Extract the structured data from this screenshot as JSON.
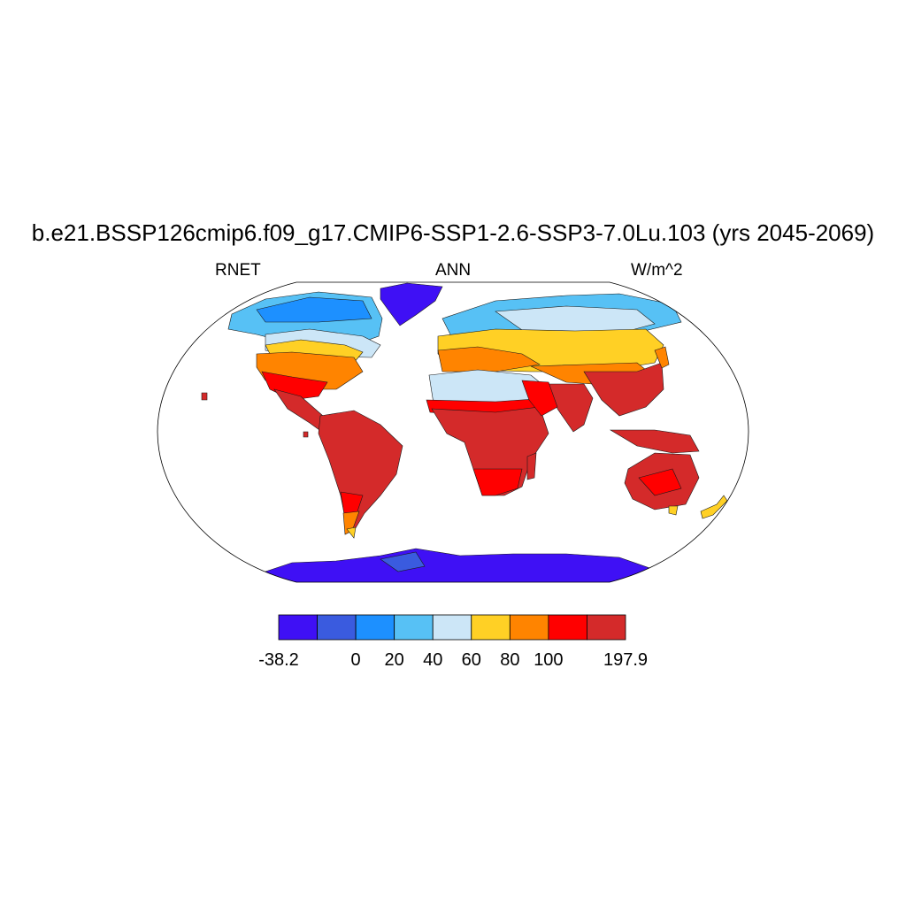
{
  "title": "b.e21.BSSP126cmip6.f09_g17.CMIP6-SSP1-2.6-SSP3-7.0Lu.103 (yrs 2045-2069)",
  "subtitles": {
    "left": "RNET",
    "center": "ANN",
    "right": "W/m^2"
  },
  "map": {
    "projection": "robinson",
    "variable": "RNET",
    "season": "ANN",
    "units": "W/m^2",
    "regions": [
      {
        "region": "Antarctica",
        "class": 0
      },
      {
        "region": "Greenland",
        "class": 0
      },
      {
        "region": "Canadian Arctic",
        "class": 2
      },
      {
        "region": "Siberia",
        "class": 3
      },
      {
        "region": "Northern Europe",
        "class": 4
      },
      {
        "region": "Central Asia",
        "class": 5
      },
      {
        "region": "Southern Europe",
        "class": 6
      },
      {
        "region": "United States",
        "class": 6
      },
      {
        "region": "Sahara",
        "class": 4
      },
      {
        "region": "Tropical Africa",
        "class": 8
      },
      {
        "region": "Amazon",
        "class": 8
      },
      {
        "region": "Southeast Asia",
        "class": 8
      },
      {
        "region": "Australia",
        "class": 8
      },
      {
        "region": "Patagonia",
        "class": 6
      }
    ]
  },
  "colorbar": {
    "colors": [
      "#3f10f5",
      "#3a5bdf",
      "#1d90ff",
      "#57c1f5",
      "#cce6f7",
      "#ffd025",
      "#ff8400",
      "#ff0000",
      "#d42a2a"
    ],
    "tick_labels": [
      {
        "label": "-38.2",
        "boundary": 0
      },
      {
        "label": "0",
        "boundary": 2
      },
      {
        "label": "20",
        "boundary": 3
      },
      {
        "label": "40",
        "boundary": 4
      },
      {
        "label": "60",
        "boundary": 5
      },
      {
        "label": "80",
        "boundary": 6
      },
      {
        "label": "100",
        "boundary": 7
      },
      {
        "label": "197.9",
        "boundary": 9
      }
    ],
    "min": -38.2,
    "max": 197.9
  }
}
